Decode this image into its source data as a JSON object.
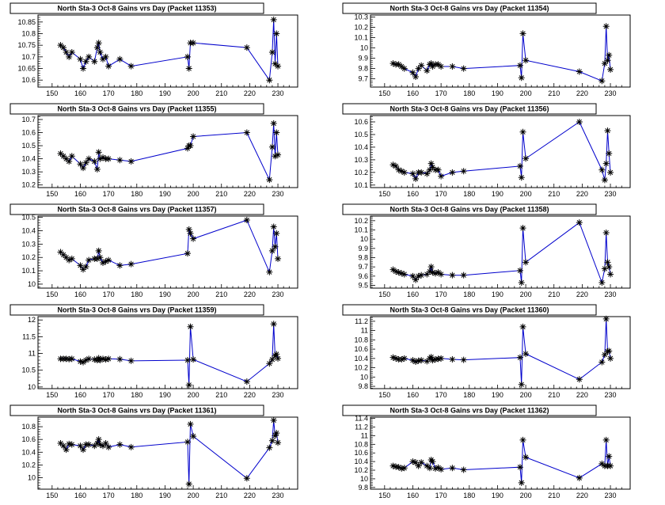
{
  "chart_data": [
    {
      "type": "line",
      "title": "North Sta-3 Oct-8 Gains vrs Day (Packet 11353)",
      "xlim": [
        145,
        237
      ],
      "ylim": [
        10.57,
        10.88
      ],
      "xticks": [
        150,
        160,
        170,
        180,
        190,
        200,
        210,
        220,
        230
      ],
      "yticks": [
        10.6,
        10.65,
        10.7,
        10.75,
        10.8,
        10.85
      ],
      "ytick_labels": [
        "10.6",
        "10.65",
        "10.7",
        "10.75",
        "10.8",
        "10.85"
      ],
      "x": [
        153,
        154,
        155,
        156,
        157,
        160,
        161,
        162,
        163,
        165,
        166,
        166.5,
        167,
        168,
        169,
        170,
        174,
        178,
        198,
        198.5,
        199,
        200,
        219,
        227,
        228,
        228.5,
        229,
        229.5,
        230
      ],
      "y": [
        10.75,
        10.74,
        10.72,
        10.7,
        10.72,
        10.69,
        10.65,
        10.68,
        10.7,
        10.68,
        10.74,
        10.76,
        10.72,
        10.69,
        10.7,
        10.66,
        10.69,
        10.66,
        10.7,
        10.65,
        10.76,
        10.76,
        10.74,
        10.6,
        10.72,
        10.86,
        10.67,
        10.8,
        10.66
      ]
    },
    {
      "type": "line",
      "title": "North Sta-3 Oct-8 Gains vrs Day (Packet 11354)",
      "xlim": [
        145,
        237
      ],
      "ylim": [
        9.62,
        10.32
      ],
      "xticks": [
        150,
        160,
        170,
        180,
        190,
        200,
        210,
        220,
        230
      ],
      "yticks": [
        9.7,
        9.8,
        9.9,
        10,
        10.1,
        10.2,
        10.3
      ],
      "ytick_labels": [
        "9.7",
        "9.8",
        "9.9",
        "10",
        "10.1",
        "10.2",
        "10.3"
      ],
      "x": [
        153,
        154,
        155,
        156,
        157,
        160,
        161,
        162,
        163,
        165,
        166,
        166.5,
        167,
        168,
        169,
        170,
        174,
        178,
        198,
        198.5,
        199,
        200,
        219,
        227,
        228,
        228.5,
        229,
        229.5,
        230
      ],
      "y": [
        9.85,
        9.84,
        9.84,
        9.82,
        9.8,
        9.76,
        9.72,
        9.8,
        9.83,
        9.78,
        9.84,
        9.85,
        9.82,
        9.84,
        9.84,
        9.82,
        9.82,
        9.8,
        9.83,
        9.71,
        10.14,
        9.88,
        9.77,
        9.68,
        9.85,
        10.21,
        9.88,
        9.93,
        9.79
      ]
    },
    {
      "type": "line",
      "title": "North Sta-3 Oct-8 Gains vrs Day (Packet 11355)",
      "xlim": [
        145,
        237
      ],
      "ylim": [
        10.18,
        10.73
      ],
      "xticks": [
        150,
        160,
        170,
        180,
        190,
        200,
        210,
        220,
        230
      ],
      "yticks": [
        10.2,
        10.3,
        10.4,
        10.5,
        10.6,
        10.7
      ],
      "ytick_labels": [
        "10.2",
        "10.3",
        "10.4",
        "10.5",
        "10.6",
        "10.7"
      ],
      "x": [
        153,
        154,
        155,
        156,
        157,
        160,
        161,
        162,
        163,
        165,
        166,
        166.5,
        167,
        168,
        169,
        170,
        174,
        178,
        198,
        198.5,
        199,
        200,
        219,
        227,
        228,
        228.5,
        229,
        229.5,
        230
      ],
      "y": [
        10.44,
        10.42,
        10.4,
        10.38,
        10.42,
        10.36,
        10.33,
        10.37,
        10.4,
        10.38,
        10.32,
        10.45,
        10.4,
        10.41,
        10.4,
        10.4,
        10.39,
        10.38,
        10.48,
        10.5,
        10.5,
        10.57,
        10.6,
        10.24,
        10.49,
        10.67,
        10.42,
        10.6,
        10.43
      ]
    },
    {
      "type": "line",
      "title": "North Sta-3 Oct-8 Gains vrs Day (Packet 11356)",
      "xlim": [
        145,
        237
      ],
      "ylim": [
        10.08,
        10.65
      ],
      "xticks": [
        150,
        160,
        170,
        180,
        190,
        200,
        210,
        220,
        230
      ],
      "yticks": [
        10.1,
        10.2,
        10.3,
        10.4,
        10.5,
        10.6
      ],
      "ytick_labels": [
        "10.1",
        "10.2",
        "10.3",
        "10.4",
        "10.5",
        "10.6"
      ],
      "x": [
        153,
        154,
        155,
        156,
        157,
        160,
        161,
        162,
        163,
        165,
        166,
        166.5,
        167,
        168,
        169,
        170,
        174,
        178,
        198,
        198.5,
        199,
        200,
        219,
        227,
        228,
        228.5,
        229,
        229.5,
        230
      ],
      "y": [
        10.26,
        10.25,
        10.22,
        10.21,
        10.2,
        10.19,
        10.15,
        10.2,
        10.2,
        10.19,
        10.22,
        10.27,
        10.24,
        10.22,
        10.22,
        10.17,
        10.2,
        10.21,
        10.25,
        10.16,
        10.52,
        10.31,
        10.6,
        10.22,
        10.14,
        10.27,
        10.53,
        10.35,
        10.2
      ]
    },
    {
      "type": "line",
      "title": "North Sta-3 Oct-8 Gains vrs Day (Packet 11357)",
      "xlim": [
        145,
        237
      ],
      "ylim": [
        9.97,
        10.51
      ],
      "xticks": [
        150,
        160,
        170,
        180,
        190,
        200,
        210,
        220,
        230
      ],
      "yticks": [
        10,
        10.1,
        10.2,
        10.3,
        10.4,
        10.5
      ],
      "ytick_labels": [
        "10",
        "10.1",
        "10.2",
        "10.3",
        "10.4",
        "10.5"
      ],
      "x": [
        153,
        154,
        155,
        156,
        157,
        160,
        161,
        162,
        163,
        165,
        166,
        166.5,
        167,
        168,
        169,
        170,
        174,
        178,
        198,
        198.5,
        199,
        200,
        219,
        227,
        228,
        228.5,
        229,
        229.5,
        230
      ],
      "y": [
        10.24,
        10.22,
        10.2,
        10.18,
        10.19,
        10.14,
        10.11,
        10.13,
        10.18,
        10.19,
        10.19,
        10.25,
        10.2,
        10.16,
        10.17,
        10.18,
        10.14,
        10.15,
        10.23,
        10.41,
        10.38,
        10.34,
        10.48,
        10.09,
        10.25,
        10.43,
        10.28,
        10.38,
        10.19
      ]
    },
    {
      "type": "line",
      "title": "North Sta-3 Oct-8 Gains vrs Day (Packet 11358)",
      "xlim": [
        145,
        237
      ],
      "ylim": [
        9.47,
        10.25
      ],
      "xticks": [
        150,
        160,
        170,
        180,
        190,
        200,
        210,
        220,
        230
      ],
      "yticks": [
        9.5,
        9.6,
        9.7,
        9.8,
        9.9,
        10,
        10.1,
        10.2
      ],
      "ytick_labels": [
        "9.5",
        "9.6",
        "9.7",
        "9.8",
        "9.9",
        "10",
        "10.1",
        "10.2"
      ],
      "x": [
        153,
        154,
        155,
        156,
        157,
        160,
        161,
        162,
        163,
        165,
        166,
        166.5,
        167,
        168,
        169,
        170,
        174,
        178,
        198,
        198.5,
        199,
        200,
        219,
        227,
        228,
        228.5,
        229,
        229.5,
        230
      ],
      "y": [
        9.67,
        9.65,
        9.64,
        9.63,
        9.62,
        9.6,
        9.56,
        9.6,
        9.61,
        9.62,
        9.65,
        9.7,
        9.64,
        9.63,
        9.64,
        9.62,
        9.61,
        9.61,
        9.66,
        9.53,
        10.12,
        9.75,
        10.18,
        9.53,
        9.68,
        10.07,
        9.75,
        9.7,
        9.62
      ]
    },
    {
      "type": "line",
      "title": "North Sta-3 Oct-8 Gains vrs Day (Packet 11359)",
      "xlim": [
        145,
        237
      ],
      "ylim": [
        9.95,
        12.1
      ],
      "xticks": [
        150,
        160,
        170,
        180,
        190,
        200,
        210,
        220,
        230
      ],
      "yticks": [
        10,
        10.5,
        11,
        11.5,
        12
      ],
      "ytick_labels": [
        "10",
        "10.5",
        "11",
        "11.5",
        "12"
      ],
      "x": [
        153,
        154,
        155,
        156,
        157,
        160,
        161,
        162,
        163,
        165,
        166,
        166.5,
        167,
        168,
        169,
        170,
        174,
        178,
        198,
        198.5,
        199,
        200,
        219,
        227,
        228,
        228.5,
        229,
        229.5,
        230
      ],
      "y": [
        10.84,
        10.84,
        10.84,
        10.83,
        10.84,
        10.76,
        10.74,
        10.8,
        10.84,
        10.82,
        10.8,
        10.86,
        10.8,
        10.84,
        10.82,
        10.84,
        10.83,
        10.78,
        10.8,
        10.06,
        11.8,
        10.82,
        10.16,
        10.7,
        10.82,
        11.88,
        10.93,
        10.98,
        10.85
      ]
    },
    {
      "type": "line",
      "title": "North Sta-3 Oct-8 Gains vrs Day (Packet 11360)",
      "xlim": [
        145,
        237
      ],
      "ylim": [
        9.75,
        11.3
      ],
      "xticks": [
        150,
        160,
        170,
        180,
        190,
        200,
        210,
        220,
        230
      ],
      "yticks": [
        9.8,
        10,
        10.2,
        10.4,
        10.6,
        10.8,
        11,
        11.2
      ],
      "ytick_labels": [
        "9.8",
        "10",
        "10.2",
        "10.4",
        "10.6",
        "10.8",
        "11",
        "11.2"
      ],
      "x": [
        153,
        154,
        155,
        156,
        157,
        160,
        161,
        162,
        163,
        165,
        166,
        166.5,
        167,
        168,
        169,
        170,
        174,
        178,
        198,
        198.5,
        199,
        200,
        219,
        227,
        228,
        228.5,
        229,
        229.5,
        230
      ],
      "y": [
        10.42,
        10.4,
        10.38,
        10.38,
        10.4,
        10.36,
        10.33,
        10.35,
        10.36,
        10.34,
        10.4,
        10.43,
        10.36,
        10.38,
        10.39,
        10.4,
        10.38,
        10.37,
        10.42,
        9.84,
        11.08,
        10.5,
        9.95,
        10.32,
        10.48,
        11.25,
        10.55,
        10.56,
        10.4
      ]
    },
    {
      "type": "line",
      "title": "North Sta-3 Oct-8 Gains vrs Day (Packet 11361)",
      "xlim": [
        145,
        237
      ],
      "ylim": [
        9.82,
        10.95
      ],
      "xticks": [
        150,
        160,
        170,
        180,
        190,
        200,
        210,
        220,
        230
      ],
      "yticks": [
        10,
        10.2,
        10.4,
        10.6,
        10.8
      ],
      "ytick_labels": [
        "10",
        "10.2",
        "10.4",
        "10.6",
        "10.8"
      ],
      "x": [
        153,
        154,
        155,
        156,
        157,
        160,
        161,
        162,
        163,
        165,
        166,
        166.5,
        167,
        168,
        169,
        170,
        174,
        178,
        198,
        198.5,
        199,
        200,
        219,
        227,
        228,
        228.5,
        229,
        229.5,
        230
      ],
      "y": [
        10.54,
        10.5,
        10.44,
        10.53,
        10.52,
        10.5,
        10.44,
        10.52,
        10.52,
        10.5,
        10.54,
        10.6,
        10.52,
        10.5,
        10.54,
        10.48,
        10.52,
        10.48,
        10.56,
        9.9,
        10.84,
        10.65,
        9.99,
        10.47,
        10.58,
        10.9,
        10.66,
        10.7,
        10.55
      ]
    },
    {
      "type": "line",
      "title": "North Sta-3 Oct-8 Gains vrs Day (Packet 11362)",
      "xlim": [
        145,
        237
      ],
      "ylim": [
        9.76,
        11.43
      ],
      "xticks": [
        150,
        160,
        170,
        180,
        190,
        200,
        210,
        220,
        230
      ],
      "yticks": [
        9.8,
        10,
        10.2,
        10.4,
        10.6,
        10.8,
        11,
        11.2,
        11.4
      ],
      "ytick_labels": [
        "9.8",
        "10",
        "10.2",
        "10.4",
        "10.6",
        "10.8",
        "11",
        "11.2",
        "11.4"
      ],
      "x": [
        153,
        154,
        155,
        156,
        157,
        160,
        161,
        162,
        163,
        165,
        166,
        166.5,
        167,
        168,
        169,
        170,
        174,
        178,
        198,
        198.5,
        199,
        200,
        219,
        227,
        228,
        228.5,
        229,
        229.5,
        230
      ],
      "y": [
        10.3,
        10.28,
        10.27,
        10.24,
        10.25,
        10.4,
        10.38,
        10.3,
        10.38,
        10.3,
        10.25,
        10.44,
        10.4,
        10.24,
        10.26,
        10.22,
        10.25,
        10.21,
        10.27,
        9.91,
        10.9,
        10.5,
        10.02,
        10.35,
        10.3,
        10.9,
        10.3,
        10.52,
        10.3
      ]
    }
  ],
  "style": {
    "line_color": "#0000cc",
    "marker_color": "#000000",
    "frame_color": "#000000",
    "title_box_fill": "#ffffff"
  }
}
